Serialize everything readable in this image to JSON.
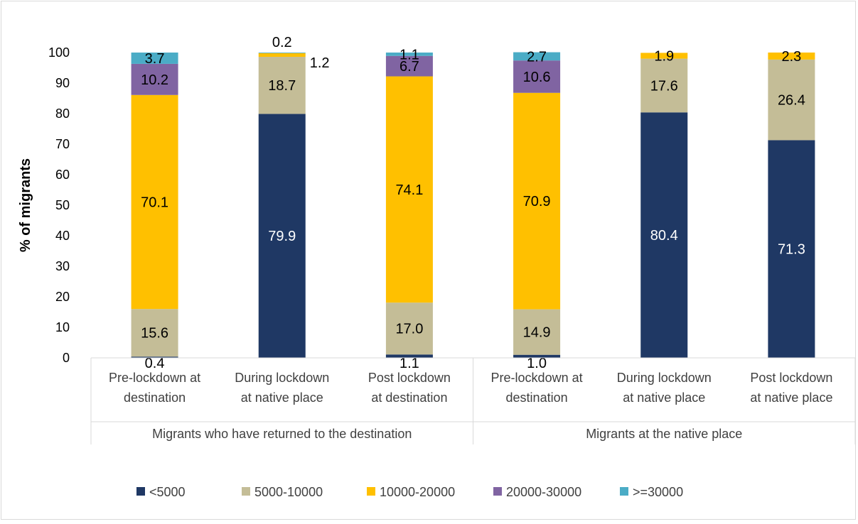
{
  "chart_data": {
    "type": "bar",
    "stacked": true,
    "ylabel": "% of  migrants",
    "ylim": [
      0,
      100
    ],
    "yticks": [
      0,
      10,
      20,
      30,
      40,
      50,
      60,
      70,
      80,
      90,
      100
    ],
    "grid": false,
    "legend_position": "bottom",
    "groups": [
      {
        "label": "Migrants who have returned to the destination",
        "categories": [
          0,
          1,
          2
        ]
      },
      {
        "label": "Migrants at the native place",
        "categories": [
          3,
          4,
          5
        ]
      }
    ],
    "categories": [
      [
        "Pre-lockdown at",
        "destination"
      ],
      [
        "During lockdown",
        "at native place"
      ],
      [
        "Post lockdown",
        "at destination"
      ],
      [
        "Pre-lockdown at",
        "destination"
      ],
      [
        "During lockdown",
        "at native place"
      ],
      [
        "Post lockdown",
        "at native place"
      ]
    ],
    "series": [
      {
        "name": "<5000",
        "color": "#1f3864",
        "values": [
          0.4,
          79.9,
          1.1,
          1.0,
          80.4,
          71.3
        ],
        "labels": [
          "0.4",
          "79.9",
          "1.1",
          "1.0",
          "80.4",
          "71.3"
        ],
        "label_colors": [
          "#000000",
          "#ffffff",
          "#000000",
          "#000000",
          "#ffffff",
          "#ffffff"
        ]
      },
      {
        "name": "5000-10000",
        "color": "#c4bd97",
        "values": [
          15.6,
          18.7,
          17.0,
          14.9,
          17.6,
          26.4
        ],
        "labels": [
          "15.6",
          "18.7",
          "17.0",
          "14.9",
          "17.6",
          "26.4"
        ]
      },
      {
        "name": "10000-20000",
        "color": "#ffc000",
        "values": [
          70.1,
          1.2,
          74.1,
          70.9,
          1.9,
          2.3
        ],
        "labels": [
          "70.1",
          "1.2",
          "74.1",
          "70.9",
          "1.9",
          "2.3"
        ]
      },
      {
        "name": "20000-30000",
        "color": "#8064a2",
        "values": [
          10.2,
          0.0,
          6.7,
          10.6,
          0.0,
          0.0
        ],
        "labels": [
          "10.2",
          "",
          "6.7",
          "10.6",
          "",
          ""
        ]
      },
      {
        "name": ">=30000",
        "color": "#4bacc6",
        "values": [
          3.7,
          0.2,
          1.1,
          2.7,
          0.0,
          0.0
        ],
        "labels": [
          "3.7",
          "0.2",
          "1.1",
          "2.7",
          "",
          ""
        ]
      }
    ]
  }
}
